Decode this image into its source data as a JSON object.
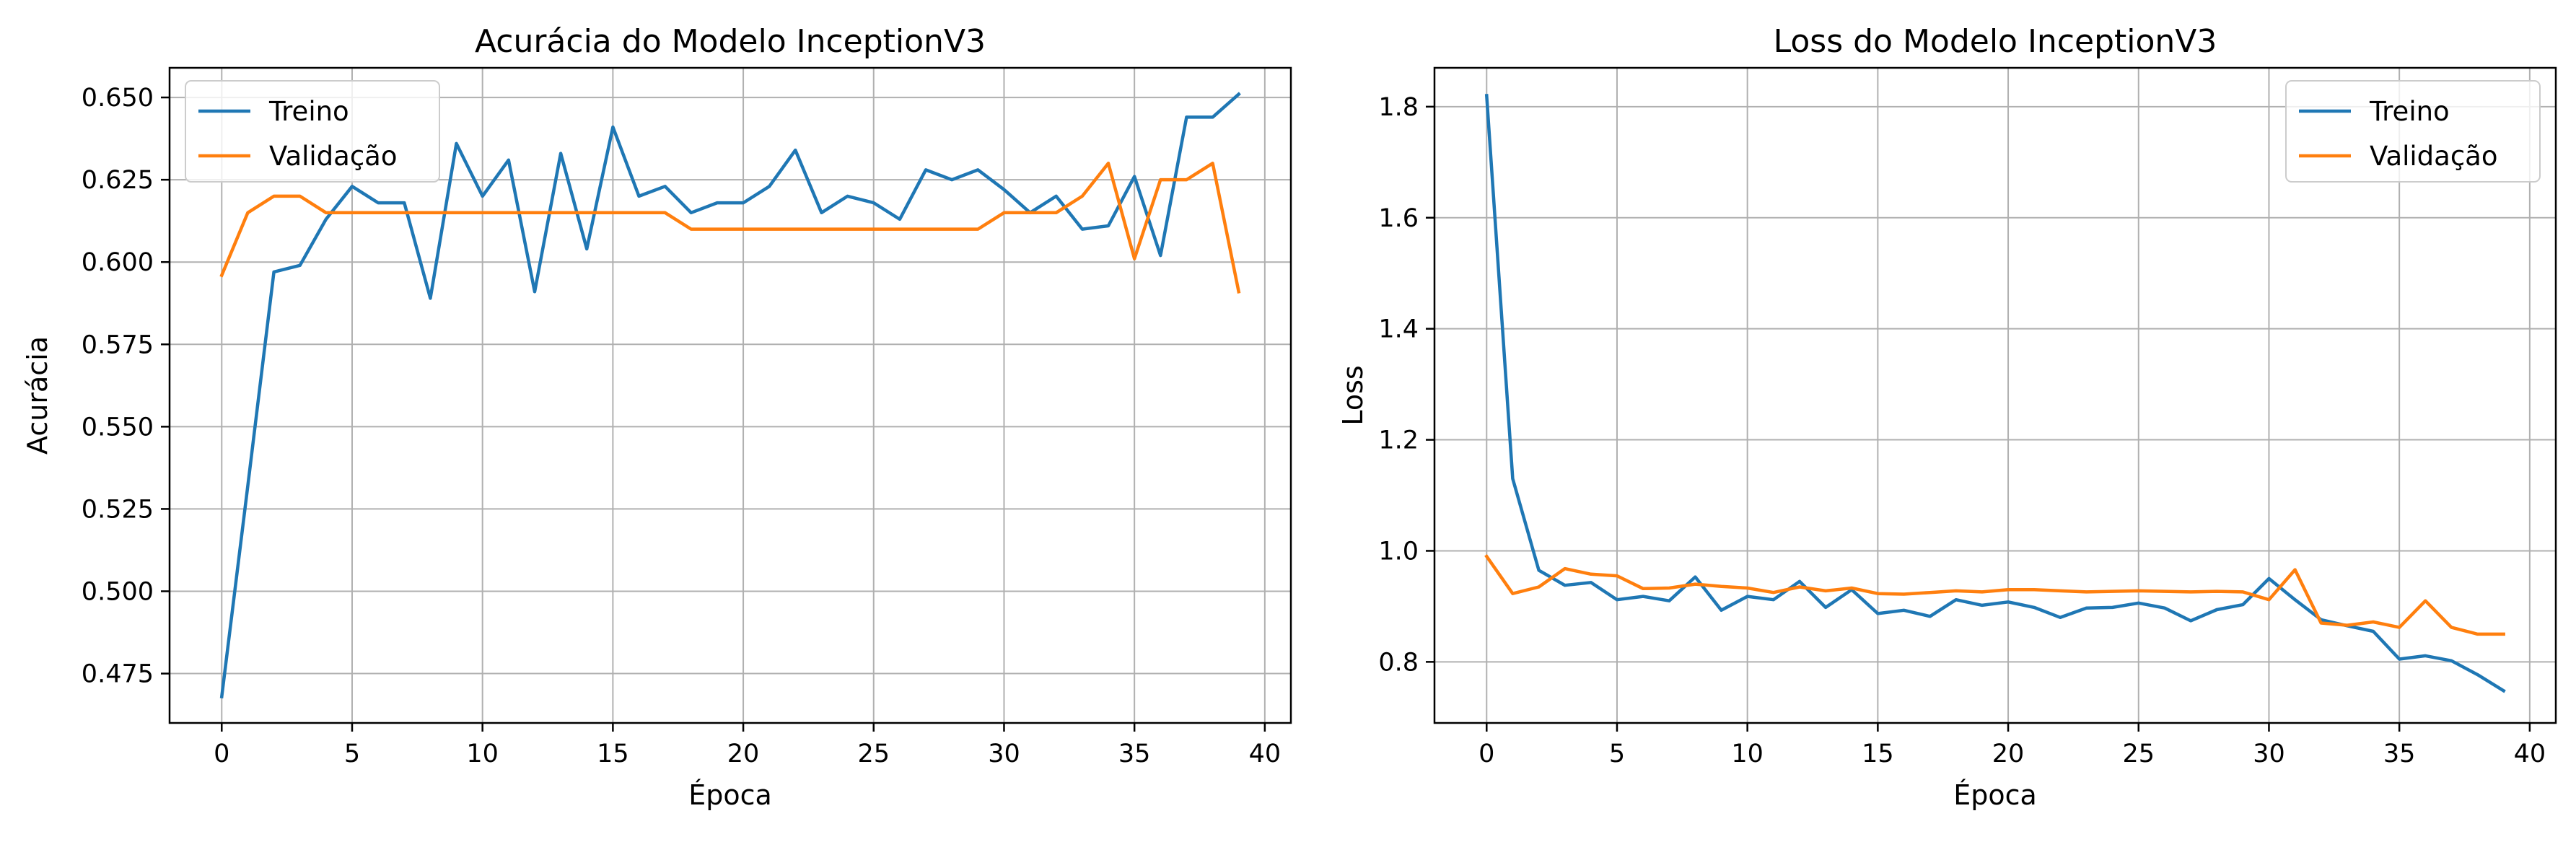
{
  "colors": {
    "treino": "#1f77b4",
    "validacao": "#ff7f0e",
    "grid": "#b0b0b0",
    "axes": "#000000"
  },
  "chart_data": [
    {
      "type": "line",
      "title": "Acurácia do Modelo InceptionV3",
      "xlabel": "Época",
      "ylabel": "Acurácia",
      "xlim": [
        -2,
        41
      ],
      "ylim": [
        0.46,
        0.659
      ],
      "xticks": [
        0,
        5,
        10,
        15,
        20,
        25,
        30,
        35,
        40
      ],
      "xtick_labels": [
        "0",
        "5",
        "10",
        "15",
        "20",
        "25",
        "30",
        "35",
        "40"
      ],
      "yticks": [
        0.475,
        0.5,
        0.525,
        0.55,
        0.575,
        0.6,
        0.625,
        0.65
      ],
      "ytick_labels": [
        "0.475",
        "0.500",
        "0.525",
        "0.550",
        "0.575",
        "0.600",
        "0.625",
        "0.650"
      ],
      "grid": true,
      "legend_position": "top-left",
      "series": [
        {
          "name": "Treino",
          "color": "#1f77b4",
          "x": [
            0,
            1,
            2,
            3,
            4,
            5,
            6,
            7,
            8,
            9,
            10,
            11,
            12,
            13,
            14,
            15,
            16,
            17,
            18,
            19,
            20,
            21,
            22,
            23,
            24,
            25,
            26,
            27,
            28,
            29,
            30,
            31,
            32,
            33,
            34,
            35,
            36,
            37,
            38,
            39
          ],
          "values": [
            0.468,
            0.532,
            0.597,
            0.599,
            0.613,
            0.623,
            0.618,
            0.618,
            0.589,
            0.636,
            0.62,
            0.631,
            0.591,
            0.633,
            0.604,
            0.641,
            0.62,
            0.623,
            0.615,
            0.618,
            0.618,
            0.623,
            0.634,
            0.615,
            0.62,
            0.618,
            0.613,
            0.628,
            0.625,
            0.628,
            0.622,
            0.615,
            0.62,
            0.61,
            0.611,
            0.626,
            0.602,
            0.644,
            0.644,
            0.651
          ]
        },
        {
          "name": "Validação",
          "color": "#ff7f0e",
          "x": [
            0,
            1,
            2,
            3,
            4,
            5,
            6,
            7,
            8,
            9,
            10,
            11,
            12,
            13,
            14,
            15,
            16,
            17,
            18,
            19,
            20,
            21,
            22,
            23,
            24,
            25,
            26,
            27,
            28,
            29,
            30,
            31,
            32,
            33,
            34,
            35,
            36,
            37,
            38,
            39
          ],
          "values": [
            0.596,
            0.615,
            0.62,
            0.62,
            0.615,
            0.615,
            0.615,
            0.615,
            0.615,
            0.615,
            0.615,
            0.615,
            0.615,
            0.615,
            0.615,
            0.615,
            0.615,
            0.615,
            0.61,
            0.61,
            0.61,
            0.61,
            0.61,
            0.61,
            0.61,
            0.61,
            0.61,
            0.61,
            0.61,
            0.61,
            0.615,
            0.615,
            0.615,
            0.62,
            0.63,
            0.601,
            0.625,
            0.625,
            0.63,
            0.591
          ]
        }
      ]
    },
    {
      "type": "line",
      "title": "Loss do Modelo InceptionV3",
      "xlabel": "Época",
      "ylabel": "Loss",
      "xlim": [
        -2,
        41
      ],
      "ylim": [
        0.69,
        1.87
      ],
      "xticks": [
        0,
        5,
        10,
        15,
        20,
        25,
        30,
        35,
        40
      ],
      "xtick_labels": [
        "0",
        "5",
        "10",
        "15",
        "20",
        "25",
        "30",
        "35",
        "40"
      ],
      "yticks": [
        0.8,
        1.0,
        1.2,
        1.4,
        1.6,
        1.8
      ],
      "ytick_labels": [
        "0.8",
        "1.0",
        "1.2",
        "1.4",
        "1.6",
        "1.8"
      ],
      "grid": true,
      "legend_position": "top-right",
      "series": [
        {
          "name": "Treino",
          "color": "#1f77b4",
          "x": [
            0,
            1,
            2,
            3,
            4,
            5,
            6,
            7,
            8,
            9,
            10,
            11,
            12,
            13,
            14,
            15,
            16,
            17,
            18,
            19,
            20,
            21,
            22,
            23,
            24,
            25,
            26,
            27,
            28,
            29,
            30,
            31,
            32,
            33,
            34,
            35,
            36,
            37,
            38,
            39
          ],
          "values": [
            1.82,
            1.13,
            0.965,
            0.938,
            0.943,
            0.912,
            0.918,
            0.91,
            0.953,
            0.893,
            0.918,
            0.912,
            0.945,
            0.898,
            0.93,
            0.887,
            0.893,
            0.882,
            0.912,
            0.902,
            0.908,
            0.898,
            0.88,
            0.897,
            0.898,
            0.906,
            0.897,
            0.874,
            0.894,
            0.903,
            0.95,
            0.912,
            0.876,
            0.865,
            0.855,
            0.805,
            0.811,
            0.802,
            0.777,
            0.748
          ]
        },
        {
          "name": "Validação",
          "color": "#ff7f0e",
          "x": [
            0,
            1,
            2,
            3,
            4,
            5,
            6,
            7,
            8,
            9,
            10,
            11,
            12,
            13,
            14,
            15,
            16,
            17,
            18,
            19,
            20,
            21,
            22,
            23,
            24,
            25,
            26,
            27,
            28,
            29,
            30,
            31,
            32,
            33,
            34,
            35,
            36,
            37,
            38,
            39
          ],
          "values": [
            0.99,
            0.923,
            0.935,
            0.968,
            0.958,
            0.955,
            0.932,
            0.933,
            0.94,
            0.936,
            0.933,
            0.925,
            0.935,
            0.928,
            0.933,
            0.923,
            0.922,
            0.925,
            0.928,
            0.926,
            0.93,
            0.93,
            0.928,
            0.926,
            0.927,
            0.928,
            0.927,
            0.926,
            0.927,
            0.926,
            0.912,
            0.966,
            0.87,
            0.866,
            0.872,
            0.862,
            0.91,
            0.862,
            0.85,
            0.85
          ]
        }
      ]
    }
  ]
}
